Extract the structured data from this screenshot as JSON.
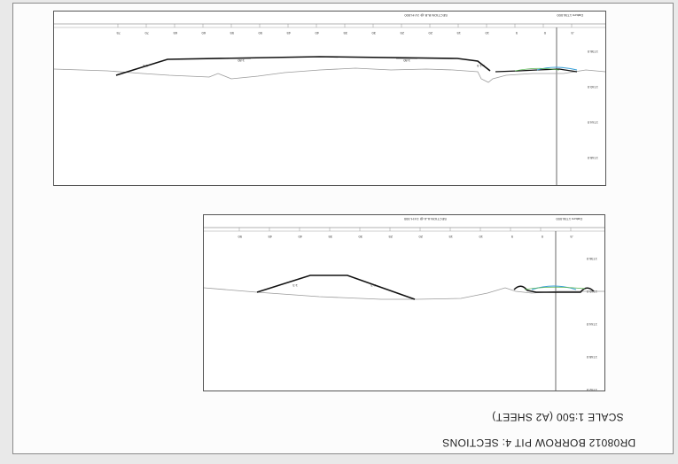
{
  "drawing": {
    "title": "DR08012 BORROW PIT 4: SECTIONS",
    "scale": "SCALE 1:500 (A2 SHEET)"
  },
  "sections": [
    {
      "id": "top",
      "heading": "SECTION B-B @ 1V:H-500",
      "datum": "Datum 1736.000",
      "chainage_labels": [
        "-5",
        "0",
        "5",
        "10",
        "15",
        "20",
        "25",
        "30",
        "35",
        "40",
        "45",
        "50",
        "55",
        "60",
        "65",
        "70",
        "75"
      ],
      "elevation_labels": [
        "1736.0",
        "1740.0",
        "1744.0",
        "1748.0",
        "1752.0"
      ],
      "slope_labels": [
        "1:3",
        "1:1.5",
        "1:80",
        "1:80"
      ]
    },
    {
      "id": "bottom",
      "heading": "SECTION A-A @ 1V:H-500",
      "datum": "Datum 1736.000",
      "chainage_labels": [
        "-5",
        "0",
        "5",
        "10",
        "15",
        "20",
        "25",
        "30",
        "35",
        "40",
        "45",
        "50"
      ],
      "elevation_labels": [
        "1736.0",
        "1740.0",
        "1744.0",
        "1748.0",
        "1752.0"
      ],
      "slope_labels": [
        "1:3",
        "1:3"
      ]
    }
  ]
}
